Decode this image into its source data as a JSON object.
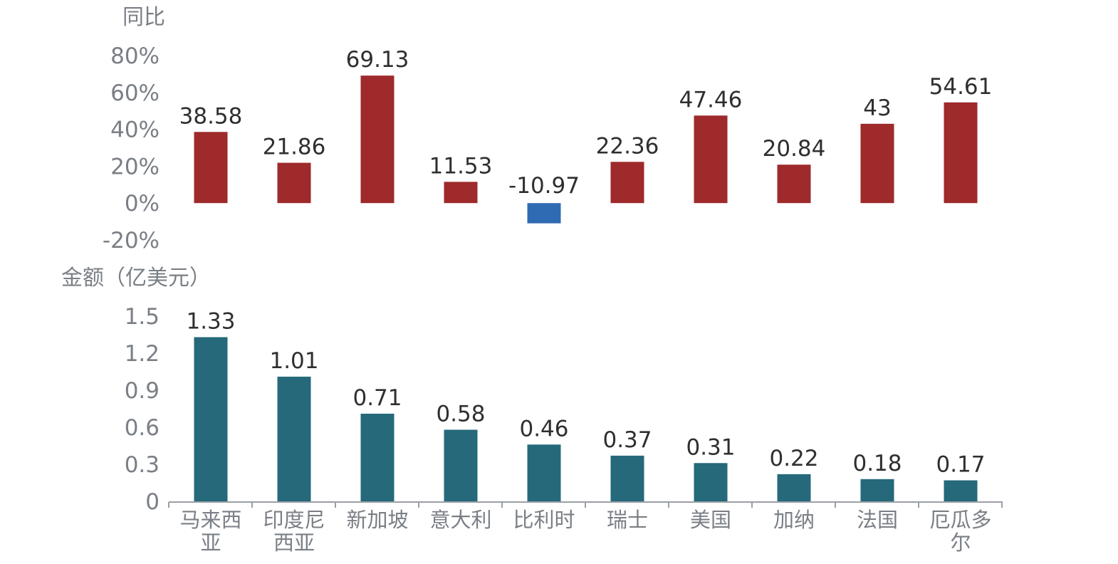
{
  "chart_data": [
    {
      "type": "bar",
      "ylabel": "同比",
      "categories": [
        "马来西亚",
        "印度尼西亚",
        "新加坡",
        "意大利",
        "比利时",
        "瑞士",
        "美国",
        "加纳",
        "法国",
        "厄瓜多尔"
      ],
      "values": [
        38.58,
        21.86,
        69.13,
        11.53,
        -10.97,
        22.36,
        47.46,
        20.84,
        43,
        54.61
      ],
      "data_labels": [
        "38.58",
        "21.86",
        "69.13",
        "11.53",
        "-10.97",
        "22.36",
        "47.46",
        "20.84",
        "43",
        "54.61"
      ],
      "yticks": [
        -20,
        0,
        20,
        40,
        60,
        80
      ],
      "ytick_labels": [
        "-20%",
        "0%",
        "20%",
        "40%",
        "60%",
        "80%"
      ],
      "ylim": [
        -20,
        80
      ],
      "colors": {
        "positive": "#9e2a2b",
        "negative": "#2f6bb3"
      },
      "grid": false,
      "legend": "none"
    },
    {
      "type": "bar",
      "ylabel": "金额（亿美元）",
      "categories": [
        "马来西亚",
        "印度尼西亚",
        "新加坡",
        "意大利",
        "比利时",
        "瑞士",
        "美国",
        "加纳",
        "法国",
        "厄瓜多尔"
      ],
      "category_lines": [
        [
          "马来西",
          "亚"
        ],
        [
          "印度尼",
          "西亚"
        ],
        [
          "新加坡"
        ],
        [
          "意大利"
        ],
        [
          "比利时"
        ],
        [
          "瑞士"
        ],
        [
          "美国"
        ],
        [
          "加纳"
        ],
        [
          "法国"
        ],
        [
          "厄瓜多",
          "尔"
        ]
      ],
      "values": [
        1.33,
        1.01,
        0.71,
        0.58,
        0.46,
        0.37,
        0.31,
        0.22,
        0.18,
        0.17
      ],
      "data_labels": [
        "1.33",
        "1.01",
        "0.71",
        "0.58",
        "0.46",
        "0.37",
        "0.31",
        "0.22",
        "0.18",
        "0.17"
      ],
      "yticks": [
        0,
        0.3,
        0.6,
        0.9,
        1.2,
        1.5
      ],
      "ytick_labels": [
        "0",
        "0.3",
        "0.6",
        "0.9",
        "1.2",
        "1.5"
      ],
      "ylim": [
        0,
        1.5
      ],
      "colors": {
        "bar": "#25697a",
        "axis": "#9aa0a6"
      },
      "grid": false,
      "legend": "none"
    }
  ]
}
